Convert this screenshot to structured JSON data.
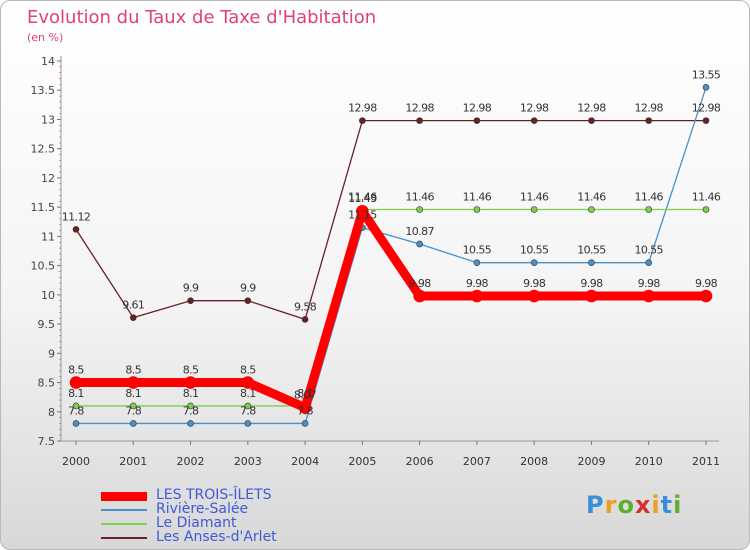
{
  "chart_data": {
    "type": "line",
    "title": "Evolution du Taux de Taxe d'Habitation",
    "subtitle": "(en %)",
    "xlabel": "",
    "ylabel": "",
    "ylim": [
      7.5,
      14
    ],
    "yticks": [
      "7.5",
      "8",
      "8.5",
      "9",
      "9.5",
      "10",
      "10.5",
      "11",
      "11.5",
      "12",
      "12.5",
      "13",
      "13.5",
      "14"
    ],
    "categories": [
      "2000",
      "2001",
      "2002",
      "2003",
      "2004",
      "2005",
      "2006",
      "2007",
      "2008",
      "2009",
      "2010",
      "2011"
    ],
    "series": [
      {
        "name": "Les Anses-d'Arlet",
        "color": "#6b1f24",
        "weight": 1.3,
        "values": [
          11.12,
          9.61,
          9.9,
          9.9,
          9.58,
          12.98,
          12.98,
          12.98,
          12.98,
          12.98,
          12.98,
          12.98
        ],
        "labels": [
          "11.12",
          "9.61",
          "9.9",
          "9.9",
          "9.58",
          "12.98",
          "12.98",
          "12.98",
          "12.98",
          "12.98",
          "12.98",
          "12.98"
        ]
      },
      {
        "name": "Rivière-Salée",
        "color": "#4a90c8",
        "weight": 1.3,
        "values": [
          7.8,
          7.8,
          7.8,
          7.8,
          7.8,
          11.15,
          10.87,
          10.55,
          10.55,
          10.55,
          10.55,
          13.55
        ],
        "labels": [
          "7.8",
          "7.8",
          "7.8",
          "7.8",
          "7.8",
          "11.15",
          "10.87",
          "10.55",
          "10.55",
          "10.55",
          "10.55",
          "13.55"
        ]
      },
      {
        "name": "Le Diamant",
        "color": "#7ed04a",
        "weight": 1.3,
        "values": [
          8.1,
          8.1,
          8.1,
          8.1,
          8.1,
          11.46,
          11.46,
          11.46,
          11.46,
          11.46,
          11.46,
          11.46
        ],
        "labels": [
          "8.1",
          "8.1",
          "8.1",
          "8.1",
          "8.1",
          "11.46",
          "11.46",
          "11.46",
          "11.46",
          "11.46",
          "11.46",
          "11.46"
        ]
      },
      {
        "name": "LES TROIS-ÎLETS",
        "color": "#ff0000",
        "weight": 9,
        "values": [
          8.5,
          8.5,
          8.5,
          8.5,
          8.07,
          11.43,
          9.98,
          9.98,
          9.98,
          9.98,
          9.98,
          9.98
        ],
        "labels": [
          "8.5",
          "8.5",
          "8.5",
          "8.5",
          "8.07",
          "11.43",
          "9.98",
          "9.98",
          "9.98",
          "9.98",
          "9.98",
          "9.98"
        ]
      }
    ],
    "legend": [
      {
        "name": "LES TROIS-ÎLETS",
        "color": "#ff0000",
        "weight": 9
      },
      {
        "name": "Rivière-Salée",
        "color": "#4a90c8",
        "weight": 1.3
      },
      {
        "name": "Le Diamant",
        "color": "#7ed04a",
        "weight": 1.3
      },
      {
        "name": "Les Anses-d'Arlet",
        "color": "#6b1f24",
        "weight": 1.3
      }
    ],
    "legend_position": "bottom-left"
  },
  "brand": {
    "letters": [
      "P",
      "r",
      "o",
      "x",
      "i",
      "t",
      "i"
    ],
    "colors": [
      "#3a8fd6",
      "#e8a020",
      "#5cb030",
      "#d83030",
      "#e8a020",
      "#3a8fd6",
      "#5cb030"
    ]
  },
  "colors": {
    "accent": "#e0407a",
    "legend_text": "#4059d8",
    "axis": "#999999",
    "grid": "#dddddd"
  }
}
